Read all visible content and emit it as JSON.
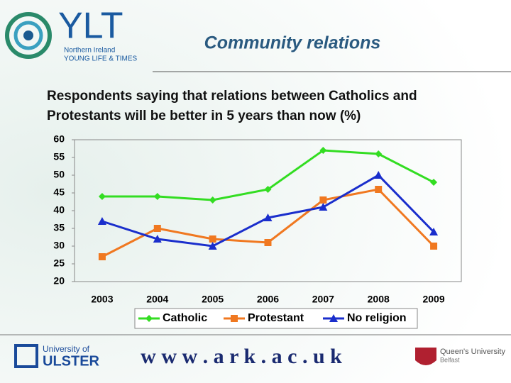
{
  "header": {
    "logo": "YLT",
    "logo_line1": "Northern Ireland",
    "logo_line2": "YOUNG LIFE & TIMES",
    "title": "Community relations"
  },
  "footer": {
    "left_line1": "University of",
    "left_line2": "ULSTER",
    "center": "w w w . a r k . a c . u k",
    "right_line1": "Queen's University",
    "right_line2": "Belfast"
  },
  "chart_data": {
    "type": "line",
    "title": "Respondents saying that relations between Catholics and Protestants will be better in 5 years than now (%)",
    "categories": [
      "2003",
      "2004",
      "2005",
      "2006",
      "2007",
      "2008",
      "2009"
    ],
    "series": [
      {
        "name": "Catholic",
        "color": "#33dd22",
        "marker": "diamond",
        "values": [
          44,
          44,
          43,
          46,
          57,
          56,
          48
        ]
      },
      {
        "name": "Protestant",
        "color": "#f07820",
        "marker": "square",
        "values": [
          27,
          35,
          32,
          31,
          43,
          46,
          30
        ]
      },
      {
        "name": "No religion",
        "color": "#1a2ecc",
        "marker": "triangle",
        "values": [
          37,
          32,
          30,
          38,
          41,
          50,
          34
        ]
      }
    ],
    "ylim": [
      20,
      60
    ],
    "yticks": [
      20,
      25,
      30,
      35,
      40,
      45,
      50,
      55,
      60
    ],
    "grid": false,
    "legend": "bottom"
  }
}
